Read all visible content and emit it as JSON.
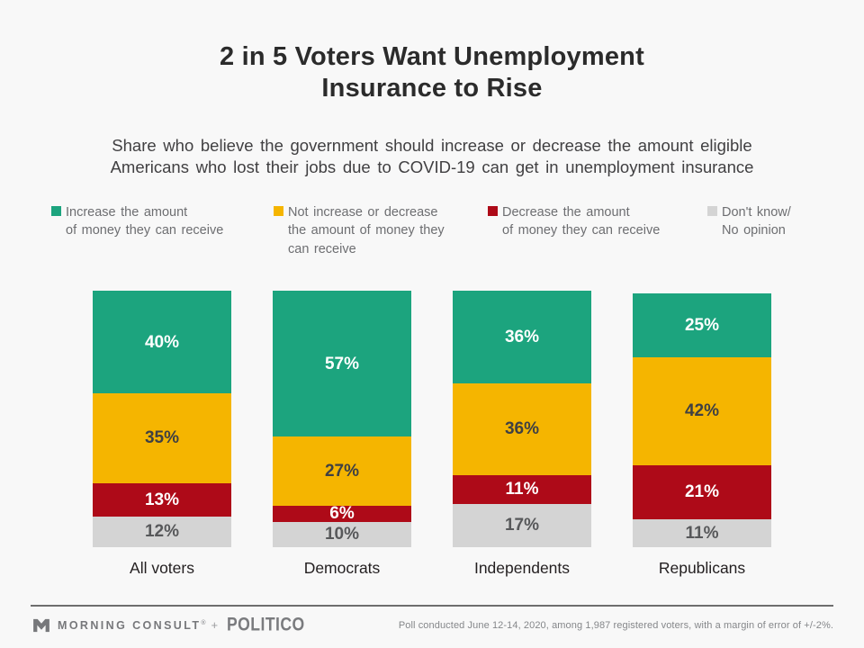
{
  "page": {
    "background": "#f8f8f8",
    "title": "2 in 5 Voters Want Unemployment\nInsurance to Rise",
    "subtitle": "Share who believe the government should increase or decrease the amount eligible\nAmericans who lost their jobs due to COVID-19 can get in unemployment insurance"
  },
  "legend": {
    "items": [
      {
        "label": "Increase the amount\nof money they can receive",
        "color": "#1ca47e"
      },
      {
        "label": "Not increase or decrease\nthe amount of money they\ncan receive",
        "color": "#f5b500"
      },
      {
        "label": "Decrease the amount\nof money they can receive",
        "color": "#ae0a18"
      },
      {
        "label": "Don't know/\nNo opinion",
        "color": "#d4d4d4"
      }
    ]
  },
  "chart_data": {
    "type": "bar",
    "variant": "stacked-percentage-column",
    "title": "2 in 5 Voters Want Unemployment Insurance to Rise",
    "subtitle": "Share who believe the government should increase or decrease the amount eligible Americans who lost their jobs due to COVID-19 can get in unemployment insurance",
    "categories": [
      "All voters",
      "Democrats",
      "Independents",
      "Republicans"
    ],
    "series": [
      {
        "name": "Increase the amount of money they can receive",
        "color": "#1ca47e",
        "label_color": "#ffffff",
        "values": [
          40,
          57,
          36,
          25
        ]
      },
      {
        "name": "Not increase or decrease the amount of money they can receive",
        "color": "#f5b500",
        "label_color": "#3f4043",
        "values": [
          35,
          27,
          36,
          42
        ]
      },
      {
        "name": "Decrease the amount of money they can receive",
        "color": "#ae0a18",
        "label_color": "#ffffff",
        "values": [
          13,
          6,
          11,
          21
        ]
      },
      {
        "name": "Don't know/No opinion",
        "color": "#d4d4d4",
        "label_color": "#57585a",
        "values": [
          12,
          10,
          17,
          11
        ]
      }
    ],
    "value_suffix": "%",
    "ylim": [
      0,
      100
    ],
    "grid": false,
    "legend_position": "top",
    "value_labels": "inside-center"
  },
  "footer": {
    "brand_left": "MORNING CONSULT",
    "brand_trademark": "®",
    "brand_separator": "+",
    "brand_right": "POLITICO",
    "note": "Poll conducted June 12-14, 2020, among 1,987 registered voters, with a margin of error of +/-2%."
  }
}
